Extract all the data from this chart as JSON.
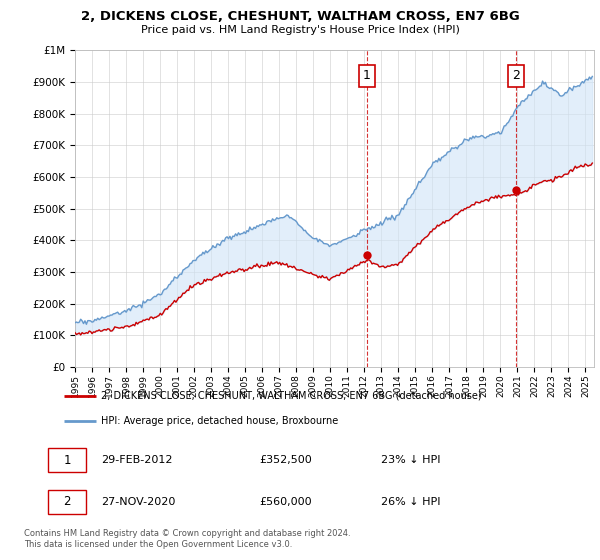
{
  "title1": "2, DICKENS CLOSE, CHESHUNT, WALTHAM CROSS, EN7 6BG",
  "title2": "Price paid vs. HM Land Registry's House Price Index (HPI)",
  "ylabel_ticks": [
    "£0",
    "£100K",
    "£200K",
    "£300K",
    "£400K",
    "£500K",
    "£600K",
    "£700K",
    "£800K",
    "£900K",
    "£1M"
  ],
  "ytick_vals": [
    0,
    100000,
    200000,
    300000,
    400000,
    500000,
    600000,
    700000,
    800000,
    900000,
    1000000
  ],
  "ylim": [
    0,
    1000000
  ],
  "xlim_start": 1995.0,
  "xlim_end": 2025.5,
  "hpi_color": "#6699cc",
  "hpi_fill_color": "#d0e4f7",
  "house_color": "#cc0000",
  "marker1_date": 2012.16,
  "marker1_value": 352500,
  "marker2_date": 2020.92,
  "marker2_value": 560000,
  "legend_house": "2, DICKENS CLOSE, CHESHUNT, WALTHAM CROSS, EN7 6BG (detached house)",
  "legend_hpi": "HPI: Average price, detached house, Broxbourne",
  "note1_label": "1",
  "note1_date": "29-FEB-2012",
  "note1_price": "£352,500",
  "note1_change": "23% ↓ HPI",
  "note2_label": "2",
  "note2_date": "27-NOV-2020",
  "note2_price": "£560,000",
  "note2_change": "26% ↓ HPI",
  "footer": "Contains HM Land Registry data © Crown copyright and database right 2024.\nThis data is licensed under the Open Government Licence v3.0.",
  "background_color": "#ffffff",
  "grid_color": "#cccccc"
}
